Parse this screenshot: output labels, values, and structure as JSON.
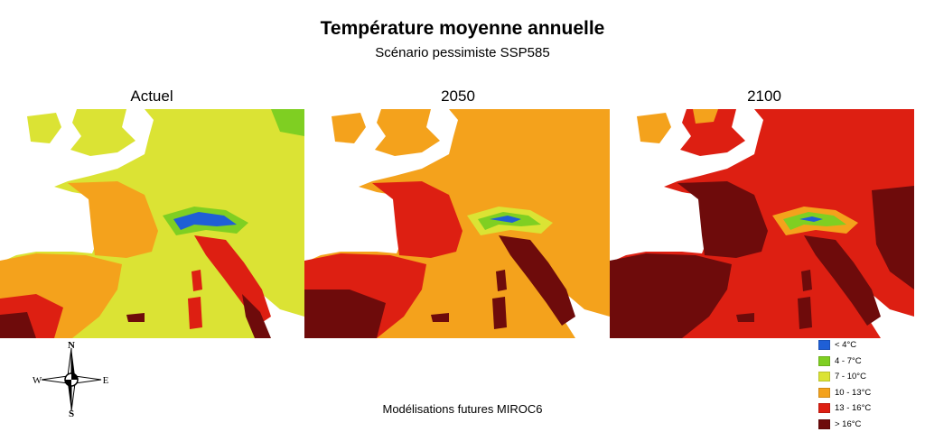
{
  "title": "Température moyenne annuelle",
  "subtitle": "Scénario pessimiste SSP585",
  "panels": [
    {
      "label": "Actuel",
      "dominant_class": "7 - 10°C"
    },
    {
      "label": "2050",
      "dominant_class": "10 - 13°C"
    },
    {
      "label": "2100",
      "dominant_class": "13 - 16°C"
    }
  ],
  "legend": [
    {
      "label": "< 4°C",
      "color": "#1f5fd6"
    },
    {
      "label": "4 - 7°C",
      "color": "#7fcf22"
    },
    {
      "label": "7 - 10°C",
      "color": "#dbe334"
    },
    {
      "label": "10 - 13°C",
      "color": "#f4a21c"
    },
    {
      "label": "13 - 16°C",
      "color": "#dd1f12"
    },
    {
      "label": "> 16°C",
      "color": "#6e0b0b"
    }
  ],
  "compass": {
    "n": "N",
    "s": "S",
    "e": "E",
    "w": "W"
  },
  "footer": "Modélisations futures MIROC6"
}
